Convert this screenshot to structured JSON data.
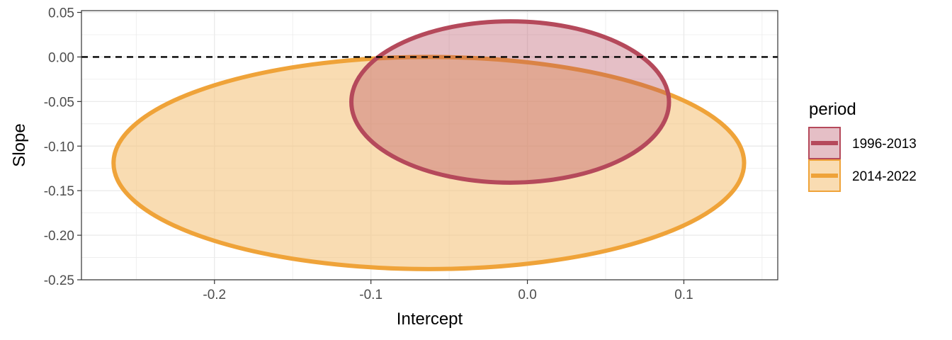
{
  "chart_data": {
    "type": "ellipse",
    "title": "",
    "xlabel": "Intercept",
    "ylabel": "Slope",
    "xlim": [
      -0.285,
      0.16
    ],
    "ylim": [
      -0.25,
      0.052
    ],
    "x_ticks": [
      -0.2,
      -0.1,
      0.0,
      0.1
    ],
    "x_tick_labels": [
      "-0.2",
      "-0.1",
      "0.0",
      "0.1"
    ],
    "y_ticks": [
      -0.25,
      -0.2,
      -0.15,
      -0.1,
      -0.05,
      0.0,
      0.05
    ],
    "y_tick_labels": [
      "-0.25",
      "-0.20",
      "-0.15",
      "-0.10",
      "-0.05",
      "0.00",
      "0.05"
    ],
    "grid": true,
    "reference_line": {
      "y": 0.0,
      "style": "dashed",
      "color": "#000000"
    },
    "legend": {
      "title": "period",
      "placement": "right",
      "entries": [
        {
          "label": "1996-2013",
          "stroke": "#B5495B",
          "fill": "#B5495B"
        },
        {
          "label": "2014-2022",
          "stroke": "#EFA339",
          "fill": "#F5C57E"
        }
      ]
    },
    "series": [
      {
        "name": "2014-2022",
        "center": {
          "x": -0.063,
          "y": -0.119
        },
        "x_range": [
          -0.264,
          0.139
        ],
        "y_range": [
          -0.238,
          0.0
        ],
        "stroke": "#EFA339",
        "fill": "#F5C57E",
        "fill_opacity": 0.6
      },
      {
        "name": "1996-2013",
        "center": {
          "x": -0.011,
          "y": -0.0505
        },
        "x_range": [
          -0.11,
          0.093
        ],
        "y_range": [
          -0.141,
          0.04
        ],
        "stroke": "#B5495B",
        "fill": "#B5495B",
        "fill_opacity": 0.35
      }
    ]
  }
}
